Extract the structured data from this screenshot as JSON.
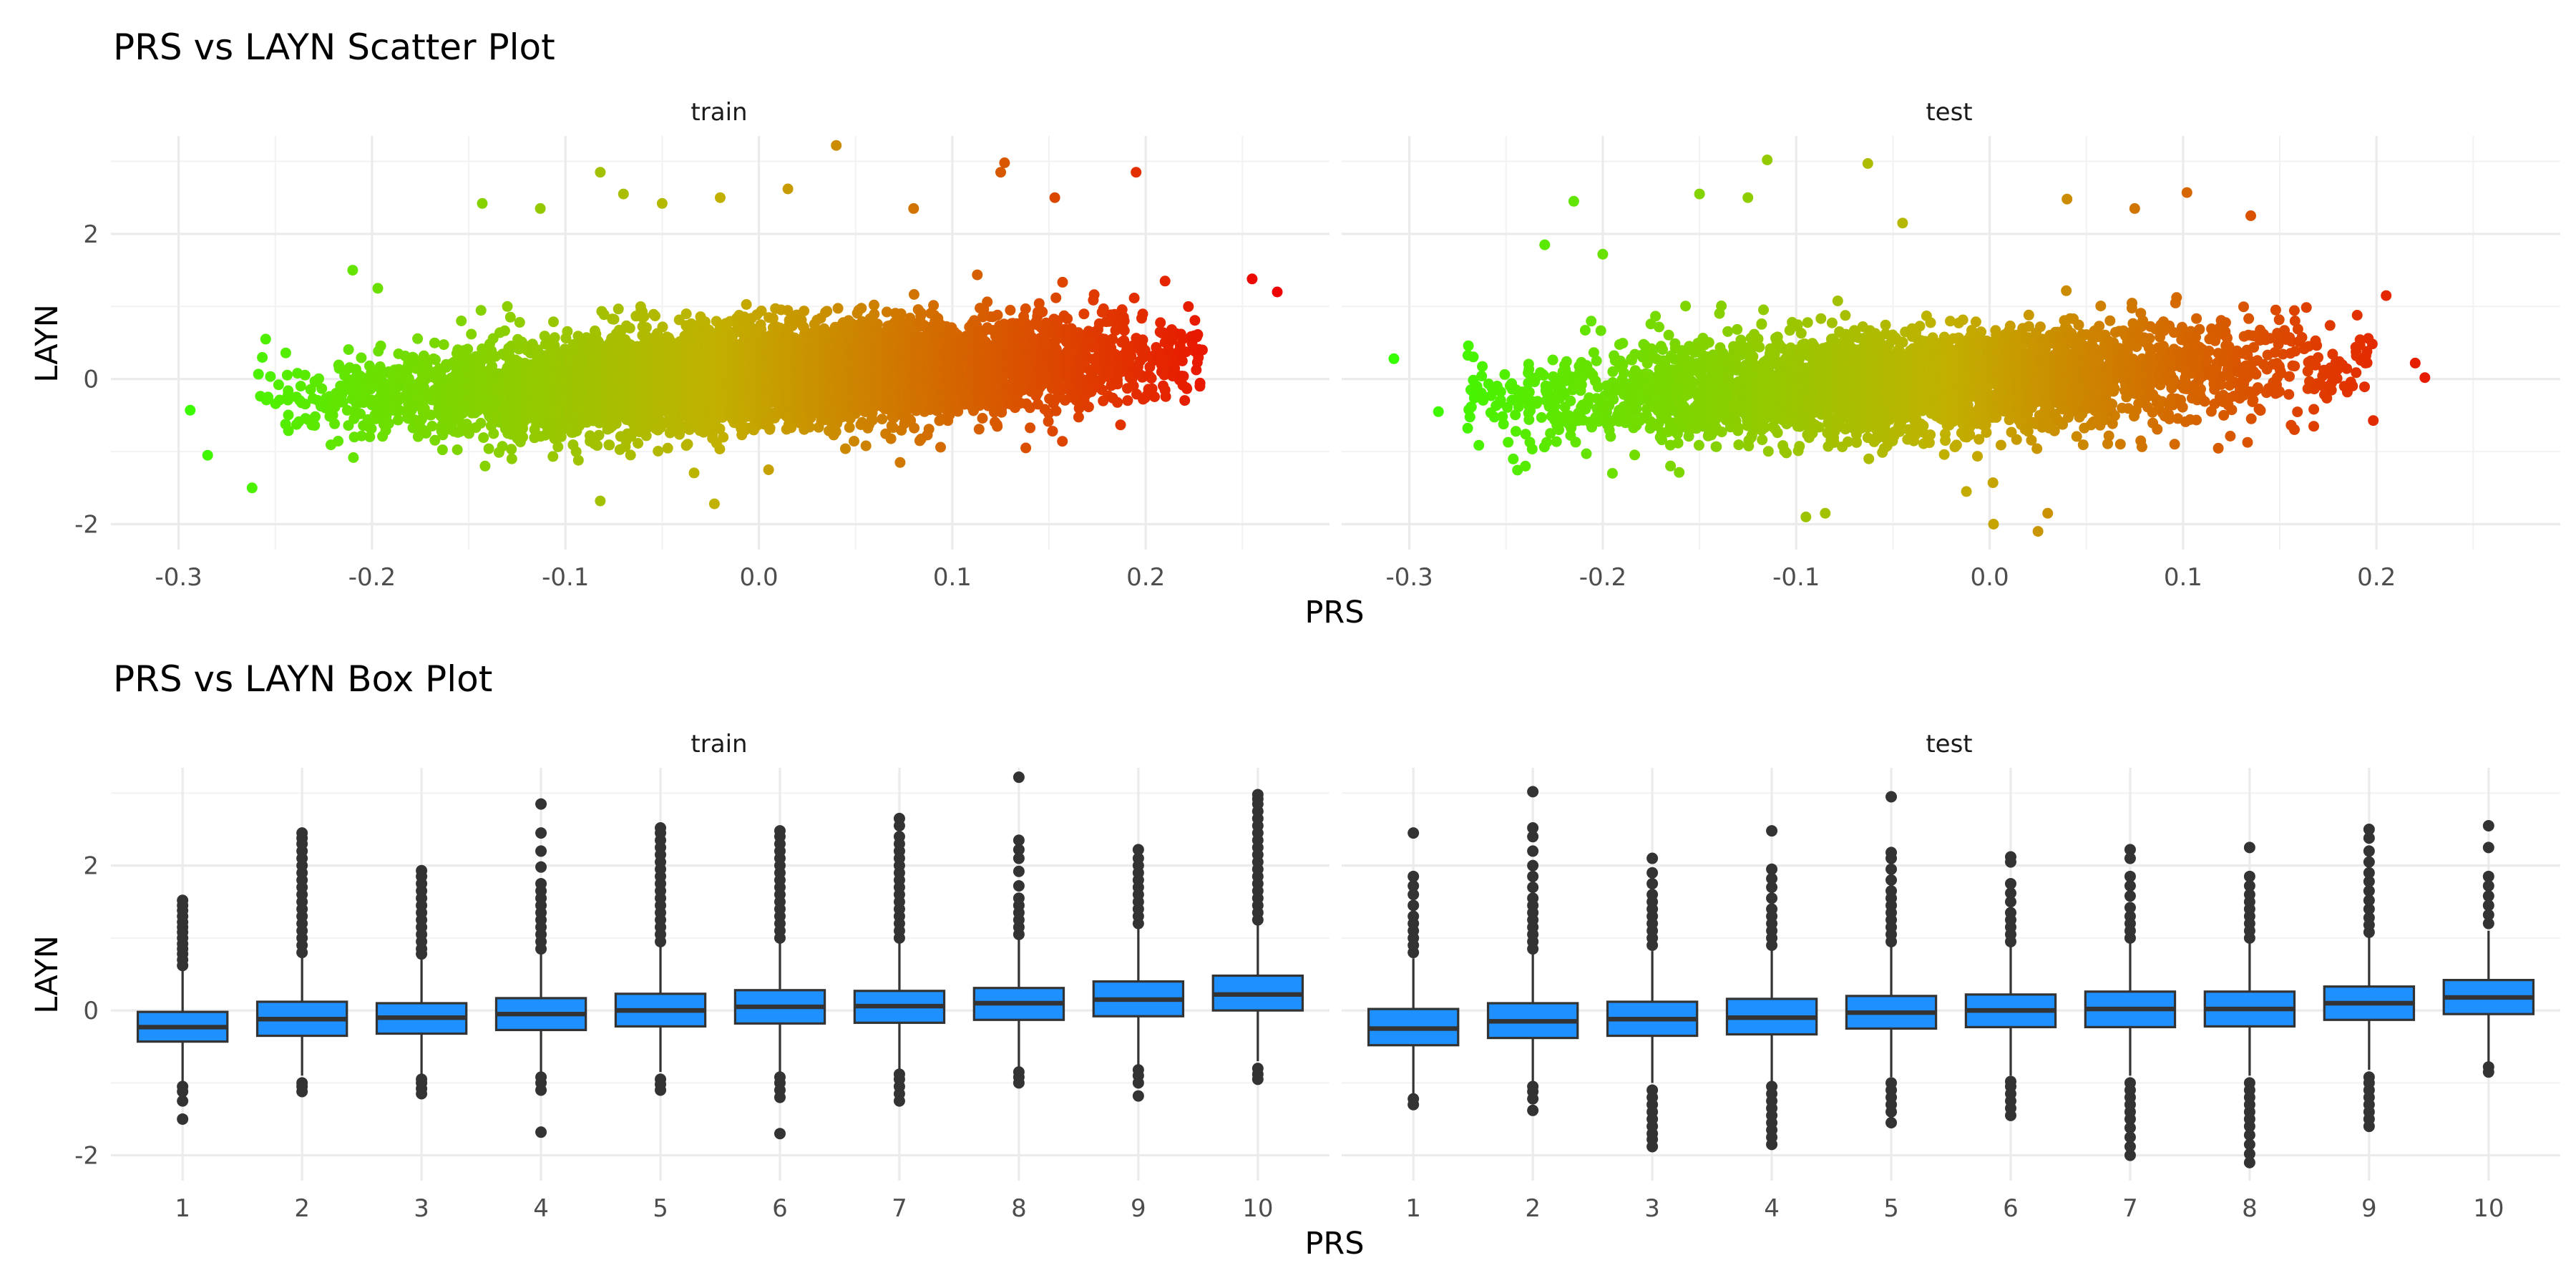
{
  "chart_data": [
    {
      "type": "scatter",
      "title": "PRS vs LAYN Scatter Plot",
      "xlabel": "PRS",
      "ylabel": "LAYN",
      "facets": [
        "train",
        "test"
      ],
      "xlim": [
        -0.335,
        0.295
      ],
      "ylim": [
        -2.35,
        3.35
      ],
      "xticks": [
        -0.3,
        -0.2,
        -0.1,
        0.0,
        0.1,
        0.2
      ],
      "xtick_labels": [
        "-0.3",
        "-0.2",
        "-0.1",
        "0.0",
        "0.1",
        "0.2"
      ],
      "yticks": [
        -2,
        0,
        2
      ],
      "ytick_labels": [
        "-2",
        "0",
        "2"
      ],
      "color_scale": {
        "variable": "PRS",
        "low": "#33ff00",
        "mid": "#c2b000",
        "high": "#ee0000"
      },
      "grid": true,
      "legend": "none",
      "series": [
        {
          "facet": "train",
          "trend": {
            "intercept": 0.04,
            "slope": 1.25,
            "sd": 0.32,
            "x_mean": 0.0,
            "x_sd": 0.095,
            "x_min": -0.26,
            "x_max": 0.23,
            "n_points": 7000
          },
          "extreme_points": [
            {
              "x": -0.294,
              "y": -0.43
            },
            {
              "x": -0.285,
              "y": -1.05
            },
            {
              "x": -0.262,
              "y": -1.5
            },
            {
              "x": -0.255,
              "y": 0.55
            },
            {
              "x": -0.21,
              "y": 1.5
            },
            {
              "x": -0.197,
              "y": 1.25
            },
            {
              "x": -0.143,
              "y": 2.42
            },
            {
              "x": -0.113,
              "y": 2.35
            },
            {
              "x": -0.082,
              "y": 2.85
            },
            {
              "x": -0.07,
              "y": 2.55
            },
            {
              "x": -0.05,
              "y": 2.42
            },
            {
              "x": -0.02,
              "y": 2.5
            },
            {
              "x": 0.015,
              "y": 2.62
            },
            {
              "x": 0.04,
              "y": 3.22
            },
            {
              "x": 0.08,
              "y": 2.35
            },
            {
              "x": 0.125,
              "y": 2.85
            },
            {
              "x": 0.127,
              "y": 2.98
            },
            {
              "x": 0.153,
              "y": 2.5
            },
            {
              "x": 0.195,
              "y": 2.85
            },
            {
              "x": 0.21,
              "y": 1.35
            },
            {
              "x": 0.255,
              "y": 1.38
            },
            {
              "x": 0.268,
              "y": 1.2
            },
            {
              "x": 0.228,
              "y": -0.1
            },
            {
              "x": 0.215,
              "y": 0.05
            },
            {
              "x": -0.082,
              "y": -1.68
            },
            {
              "x": -0.023,
              "y": -1.72
            },
            {
              "x": 0.005,
              "y": -1.25
            },
            {
              "x": 0.073,
              "y": -1.15
            },
            {
              "x": 0.138,
              "y": -0.95
            }
          ]
        },
        {
          "facet": "test",
          "trend": {
            "intercept": 0.0,
            "slope": 1.1,
            "sd": 0.36,
            "x_mean": -0.04,
            "x_sd": 0.1,
            "x_min": -0.27,
            "x_max": 0.2,
            "n_points": 3500
          },
          "extreme_points": [
            {
              "x": -0.308,
              "y": 0.28
            },
            {
              "x": -0.285,
              "y": -0.45
            },
            {
              "x": -0.23,
              "y": 1.85
            },
            {
              "x": -0.215,
              "y": 2.45
            },
            {
              "x": -0.2,
              "y": 1.72
            },
            {
              "x": -0.115,
              "y": 3.02
            },
            {
              "x": -0.125,
              "y": 2.5
            },
            {
              "x": -0.063,
              "y": 2.97
            },
            {
              "x": -0.15,
              "y": 2.55
            },
            {
              "x": -0.045,
              "y": 2.15
            },
            {
              "x": 0.04,
              "y": 2.48
            },
            {
              "x": 0.075,
              "y": 2.35
            },
            {
              "x": 0.102,
              "y": 2.57
            },
            {
              "x": 0.135,
              "y": 2.25
            },
            {
              "x": 0.19,
              "y": 0.88
            },
            {
              "x": 0.205,
              "y": 1.15
            },
            {
              "x": 0.22,
              "y": 0.22
            },
            {
              "x": 0.225,
              "y": 0.02
            },
            {
              "x": -0.095,
              "y": -1.9
            },
            {
              "x": -0.085,
              "y": -1.85
            },
            {
              "x": -0.012,
              "y": -1.55
            },
            {
              "x": 0.002,
              "y": -2.0
            },
            {
              "x": 0.025,
              "y": -2.1
            },
            {
              "x": 0.03,
              "y": -1.85
            },
            {
              "x": -0.24,
              "y": -1.2
            },
            {
              "x": -0.195,
              "y": -1.3
            }
          ]
        }
      ]
    },
    {
      "type": "box",
      "title": "PRS vs LAYN Box Plot",
      "xlabel": "PRS",
      "ylabel": "LAYN",
      "facets": [
        "train",
        "test"
      ],
      "categories": [
        "1",
        "2",
        "3",
        "4",
        "5",
        "6",
        "7",
        "8",
        "9",
        "10"
      ],
      "ylim": [
        -2.35,
        3.35
      ],
      "yticks": [
        -2,
        0,
        2
      ],
      "ytick_labels": [
        "-2",
        "0",
        "2"
      ],
      "fill_color": "#1e90ff",
      "line_color": "#333333",
      "grid": true,
      "series": [
        {
          "facet": "train",
          "boxes": [
            {
              "q1": -0.43,
              "median": -0.23,
              "q3": -0.02,
              "whisker_low": -1.0,
              "whisker_high": 0.55,
              "outliers": [
                -1.5,
                -1.25,
                -1.12,
                -1.05,
                0.62,
                0.7,
                0.78,
                0.85,
                0.92,
                1.0,
                1.08,
                1.15,
                1.22,
                1.3,
                1.38,
                1.45,
                1.52
              ]
            },
            {
              "q1": -0.35,
              "median": -0.12,
              "q3": 0.12,
              "whisker_low": -0.9,
              "whisker_high": 0.75,
              "outliers": [
                -1.12,
                -1.05,
                -1.0,
                0.8,
                0.9,
                1.0,
                1.1,
                1.2,
                1.3,
                1.4,
                1.5,
                1.6,
                1.7,
                1.8,
                1.9,
                2.0,
                2.1,
                2.2,
                2.3,
                2.38,
                2.45
              ]
            },
            {
              "q1": -0.32,
              "median": -0.1,
              "q3": 0.1,
              "whisker_low": -0.9,
              "whisker_high": 0.72,
              "outliers": [
                -1.15,
                -1.08,
                -1.0,
                -0.95,
                0.78,
                0.85,
                0.95,
                1.05,
                1.15,
                1.25,
                1.35,
                1.45,
                1.55,
                1.65,
                1.75,
                1.85,
                1.93
              ]
            },
            {
              "q1": -0.27,
              "median": -0.05,
              "q3": 0.17,
              "whisker_low": -0.85,
              "whisker_high": 0.8,
              "outliers": [
                -1.68,
                -1.1,
                -1.0,
                -0.92,
                0.85,
                0.95,
                1.05,
                1.15,
                1.25,
                1.35,
                1.45,
                1.55,
                1.65,
                1.75,
                1.98,
                2.2,
                2.45,
                2.85
              ]
            },
            {
              "q1": -0.22,
              "median": 0.0,
              "q3": 0.23,
              "whisker_low": -0.85,
              "whisker_high": 0.9,
              "outliers": [
                -1.1,
                -1.02,
                -0.95,
                0.95,
                1.05,
                1.15,
                1.25,
                1.35,
                1.45,
                1.55,
                1.65,
                1.75,
                1.85,
                1.95,
                2.05,
                2.15,
                2.25,
                2.35,
                2.45,
                2.52
              ]
            },
            {
              "q1": -0.18,
              "median": 0.05,
              "q3": 0.28,
              "whisker_low": -0.85,
              "whisker_high": 0.95,
              "outliers": [
                -1.7,
                -1.2,
                -1.1,
                -1.0,
                -0.92,
                1.0,
                1.1,
                1.2,
                1.3,
                1.4,
                1.5,
                1.6,
                1.7,
                1.8,
                1.9,
                2.0,
                2.1,
                2.2,
                2.3,
                2.4,
                2.48
              ]
            },
            {
              "q1": -0.17,
              "median": 0.06,
              "q3": 0.27,
              "whisker_low": -0.82,
              "whisker_high": 0.95,
              "outliers": [
                -1.25,
                -1.15,
                -1.05,
                -0.95,
                -0.88,
                1.0,
                1.1,
                1.2,
                1.3,
                1.4,
                1.5,
                1.6,
                1.7,
                1.8,
                1.9,
                2.0,
                2.1,
                2.2,
                2.3,
                2.4,
                2.55,
                2.65
              ]
            },
            {
              "q1": -0.13,
              "median": 0.1,
              "q3": 0.31,
              "whisker_low": -0.78,
              "whisker_high": 0.98,
              "outliers": [
                -1.0,
                -0.92,
                -0.85,
                1.05,
                1.15,
                1.25,
                1.35,
                1.45,
                1.55,
                1.72,
                1.92,
                2.1,
                2.22,
                2.35,
                3.22
              ]
            },
            {
              "q1": -0.08,
              "median": 0.15,
              "q3": 0.4,
              "whisker_low": -0.75,
              "whisker_high": 1.15,
              "outliers": [
                -1.18,
                -1.0,
                -0.9,
                -0.82,
                1.2,
                1.3,
                1.4,
                1.5,
                1.6,
                1.7,
                1.8,
                1.9,
                2.0,
                2.1,
                2.22
              ]
            },
            {
              "q1": 0.0,
              "median": 0.22,
              "q3": 0.48,
              "whisker_low": -0.7,
              "whisker_high": 1.2,
              "outliers": [
                -0.95,
                -0.88,
                -0.8,
                1.25,
                1.35,
                1.45,
                1.55,
                1.65,
                1.75,
                1.85,
                1.95,
                2.05,
                2.15,
                2.25,
                2.35,
                2.45,
                2.55,
                2.65,
                2.75,
                2.85,
                2.92,
                2.98
              ]
            }
          ]
        },
        {
          "facet": "test",
          "boxes": [
            {
              "q1": -0.48,
              "median": -0.25,
              "q3": 0.02,
              "whisker_low": -1.15,
              "whisker_high": 0.72,
              "outliers": [
                -1.3,
                -1.22,
                0.8,
                0.9,
                1.0,
                1.1,
                1.2,
                1.3,
                1.45,
                1.6,
                1.72,
                1.85,
                2.45
              ]
            },
            {
              "q1": -0.38,
              "median": -0.15,
              "q3": 0.1,
              "whisker_low": -1.0,
              "whisker_high": 0.78,
              "outliers": [
                -1.38,
                -1.22,
                -1.12,
                -1.05,
                0.85,
                0.95,
                1.05,
                1.15,
                1.25,
                1.35,
                1.45,
                1.55,
                1.7,
                1.85,
                2.0,
                2.2,
                2.4,
                2.52,
                3.02
              ]
            },
            {
              "q1": -0.35,
              "median": -0.12,
              "q3": 0.12,
              "whisker_low": -1.0,
              "whisker_high": 0.82,
              "outliers": [
                -1.88,
                -1.78,
                -1.7,
                -1.6,
                -1.5,
                -1.4,
                -1.3,
                -1.2,
                -1.1,
                0.9,
                1.0,
                1.1,
                1.2,
                1.3,
                1.4,
                1.5,
                1.6,
                1.75,
                1.9,
                2.1
              ]
            },
            {
              "q1": -0.33,
              "median": -0.1,
              "q3": 0.16,
              "whisker_low": -0.98,
              "whisker_high": 0.85,
              "outliers": [
                -1.85,
                -1.75,
                -1.65,
                -1.55,
                -1.45,
                -1.35,
                -1.25,
                -1.15,
                -1.05,
                0.9,
                1.0,
                1.1,
                1.2,
                1.3,
                1.4,
                1.55,
                1.7,
                1.82,
                1.95,
                2.48
              ]
            },
            {
              "q1": -0.25,
              "median": -0.03,
              "q3": 0.2,
              "whisker_low": -0.92,
              "whisker_high": 0.88,
              "outliers": [
                -1.55,
                -1.4,
                -1.3,
                -1.2,
                -1.1,
                -1.0,
                0.95,
                1.05,
                1.15,
                1.25,
                1.35,
                1.45,
                1.55,
                1.65,
                1.8,
                1.95,
                2.1,
                2.18,
                2.95
              ]
            },
            {
              "q1": -0.23,
              "median": 0.0,
              "q3": 0.22,
              "whisker_low": -0.9,
              "whisker_high": 0.9,
              "outliers": [
                -1.45,
                -1.35,
                -1.25,
                -1.15,
                -1.05,
                -0.98,
                0.95,
                1.05,
                1.15,
                1.25,
                1.35,
                1.5,
                1.62,
                1.75,
                2.05,
                2.12
              ]
            },
            {
              "q1": -0.23,
              "median": 0.02,
              "q3": 0.26,
              "whisker_low": -0.9,
              "whisker_high": 0.95,
              "outliers": [
                -2.0,
                -1.88,
                -1.75,
                -1.62,
                -1.5,
                -1.4,
                -1.3,
                -1.2,
                -1.1,
                -1.0,
                1.0,
                1.1,
                1.2,
                1.3,
                1.42,
                1.58,
                1.72,
                1.85,
                2.1,
                2.22
              ]
            },
            {
              "q1": -0.22,
              "median": 0.02,
              "q3": 0.26,
              "whisker_low": -0.9,
              "whisker_high": 0.95,
              "outliers": [
                -2.1,
                -1.98,
                -1.85,
                -1.72,
                -1.6,
                -1.5,
                -1.4,
                -1.3,
                -1.2,
                -1.1,
                -1.0,
                1.0,
                1.1,
                1.2,
                1.3,
                1.4,
                1.5,
                1.6,
                1.72,
                1.85,
                2.25
              ]
            },
            {
              "q1": -0.13,
              "median": 0.1,
              "q3": 0.33,
              "whisker_low": -0.82,
              "whisker_high": 1.02,
              "outliers": [
                -1.6,
                -1.5,
                -1.4,
                -1.3,
                -1.2,
                -1.1,
                -1.0,
                -0.92,
                1.08,
                1.18,
                1.28,
                1.4,
                1.52,
                1.65,
                1.78,
                1.9,
                2.05,
                2.2,
                2.38,
                2.5
              ]
            },
            {
              "q1": -0.05,
              "median": 0.18,
              "q3": 0.42,
              "whisker_low": -0.72,
              "whisker_high": 1.1,
              "outliers": [
                -0.85,
                -0.78,
                1.2,
                1.32,
                1.45,
                1.58,
                1.72,
                1.85,
                2.25,
                2.55
              ]
            }
          ]
        }
      ]
    }
  ]
}
